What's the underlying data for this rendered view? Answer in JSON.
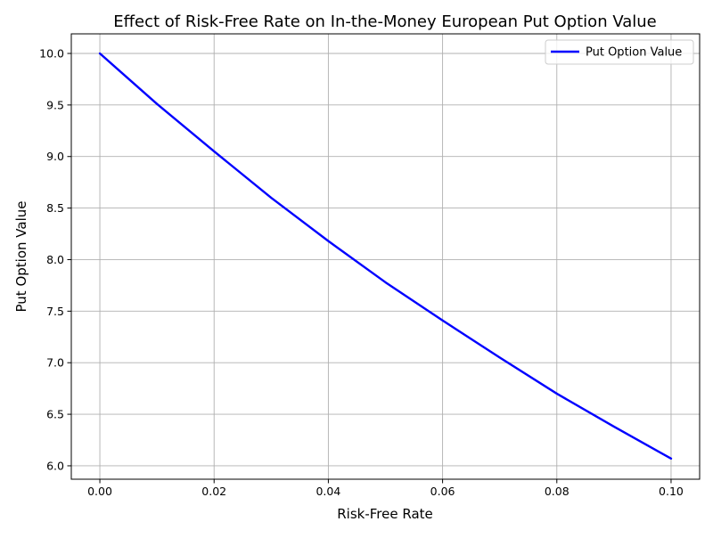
{
  "chart_data": {
    "type": "line",
    "title": "Effect of Risk-Free Rate on In-the-Money European Put Option Value",
    "xlabel": "Risk-Free Rate",
    "ylabel": "Put Option Value",
    "xlim": [
      -0.005,
      0.105
    ],
    "ylim": [
      5.87,
      10.19
    ],
    "x_ticks": [
      0.0,
      0.02,
      0.04,
      0.06,
      0.08,
      0.1
    ],
    "x_tick_labels": [
      "0.00",
      "0.02",
      "0.04",
      "0.06",
      "0.08",
      "0.10"
    ],
    "y_ticks": [
      6.0,
      6.5,
      7.0,
      7.5,
      8.0,
      8.5,
      9.0,
      9.5,
      10.0
    ],
    "y_tick_labels": [
      "6.0",
      "6.5",
      "7.0",
      "7.5",
      "8.0",
      "8.5",
      "9.0",
      "9.5",
      "10.0"
    ],
    "grid": true,
    "legend_position": "top-right",
    "series": [
      {
        "name": "Put Option Value",
        "color": "#0000ff",
        "x": [
          0.0,
          0.01,
          0.02,
          0.03,
          0.04,
          0.05,
          0.06,
          0.07,
          0.08,
          0.09,
          0.1
        ],
        "y": [
          10.0,
          9.51,
          9.05,
          8.6,
          8.18,
          7.78,
          7.41,
          7.05,
          6.7,
          6.38,
          6.07
        ]
      }
    ]
  }
}
